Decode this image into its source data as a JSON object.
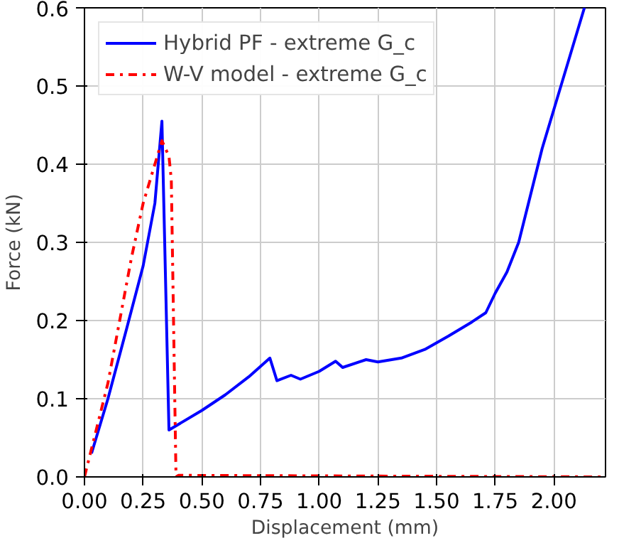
{
  "chart_data": {
    "type": "line",
    "xlabel": "Displacement (mm)",
    "ylabel": "Force (kN)",
    "xlim": [
      0,
      2.22
    ],
    "ylim": [
      0,
      0.6
    ],
    "xticks": [
      {
        "value": 0,
        "label": "0.00"
      },
      {
        "value": 0.25,
        "label": "0.25"
      },
      {
        "value": 0.5,
        "label": "0.50"
      },
      {
        "value": 0.75,
        "label": "0.75"
      },
      {
        "value": 1,
        "label": "1.00"
      },
      {
        "value": 1.25,
        "label": "1.25"
      },
      {
        "value": 1.5,
        "label": "1.50"
      },
      {
        "value": 1.75,
        "label": "1.75"
      },
      {
        "value": 2,
        "label": "2.00"
      }
    ],
    "yticks": [
      {
        "value": 0,
        "label": "0.0"
      },
      0.1,
      0.2,
      0.3,
      0.4,
      0.5,
      0.6
    ],
    "grid": true,
    "legend": "top left",
    "series": [
      {
        "name": "Hybrid PF - extreme G_c",
        "color": "#0000ff",
        "line_style": "solid",
        "x": [
          0.03,
          0.1,
          0.18,
          0.25,
          0.3,
          0.33,
          0.36,
          0.5,
          0.6,
          0.7,
          0.79,
          0.82,
          0.88,
          0.92,
          1.0,
          1.07,
          1.1,
          1.2,
          1.25,
          1.35,
          1.45,
          1.55,
          1.65,
          1.71,
          1.75,
          1.8,
          1.85,
          1.9,
          1.95,
          2.0,
          2.07,
          2.13
        ],
        "values": [
          0.03,
          0.1,
          0.19,
          0.27,
          0.35,
          0.455,
          0.06,
          0.085,
          0.105,
          0.128,
          0.152,
          0.123,
          0.13,
          0.125,
          0.135,
          0.148,
          0.14,
          0.15,
          0.147,
          0.152,
          0.163,
          0.18,
          0.198,
          0.21,
          0.235,
          0.262,
          0.3,
          0.36,
          0.42,
          0.47,
          0.54,
          0.6
        ]
      },
      {
        "name": "W-V model - extreme G_c",
        "color": "#ff0000",
        "line_style": "dashdot",
        "x": [
          0,
          0.1,
          0.2,
          0.25,
          0.3,
          0.33,
          0.36,
          0.37,
          0.39,
          0.4,
          2.22
        ],
        "values": [
          0,
          0.12,
          0.28,
          0.35,
          0.4,
          0.43,
          0.41,
          0.38,
          0.0,
          0.002,
          0.0
        ]
      }
    ]
  }
}
